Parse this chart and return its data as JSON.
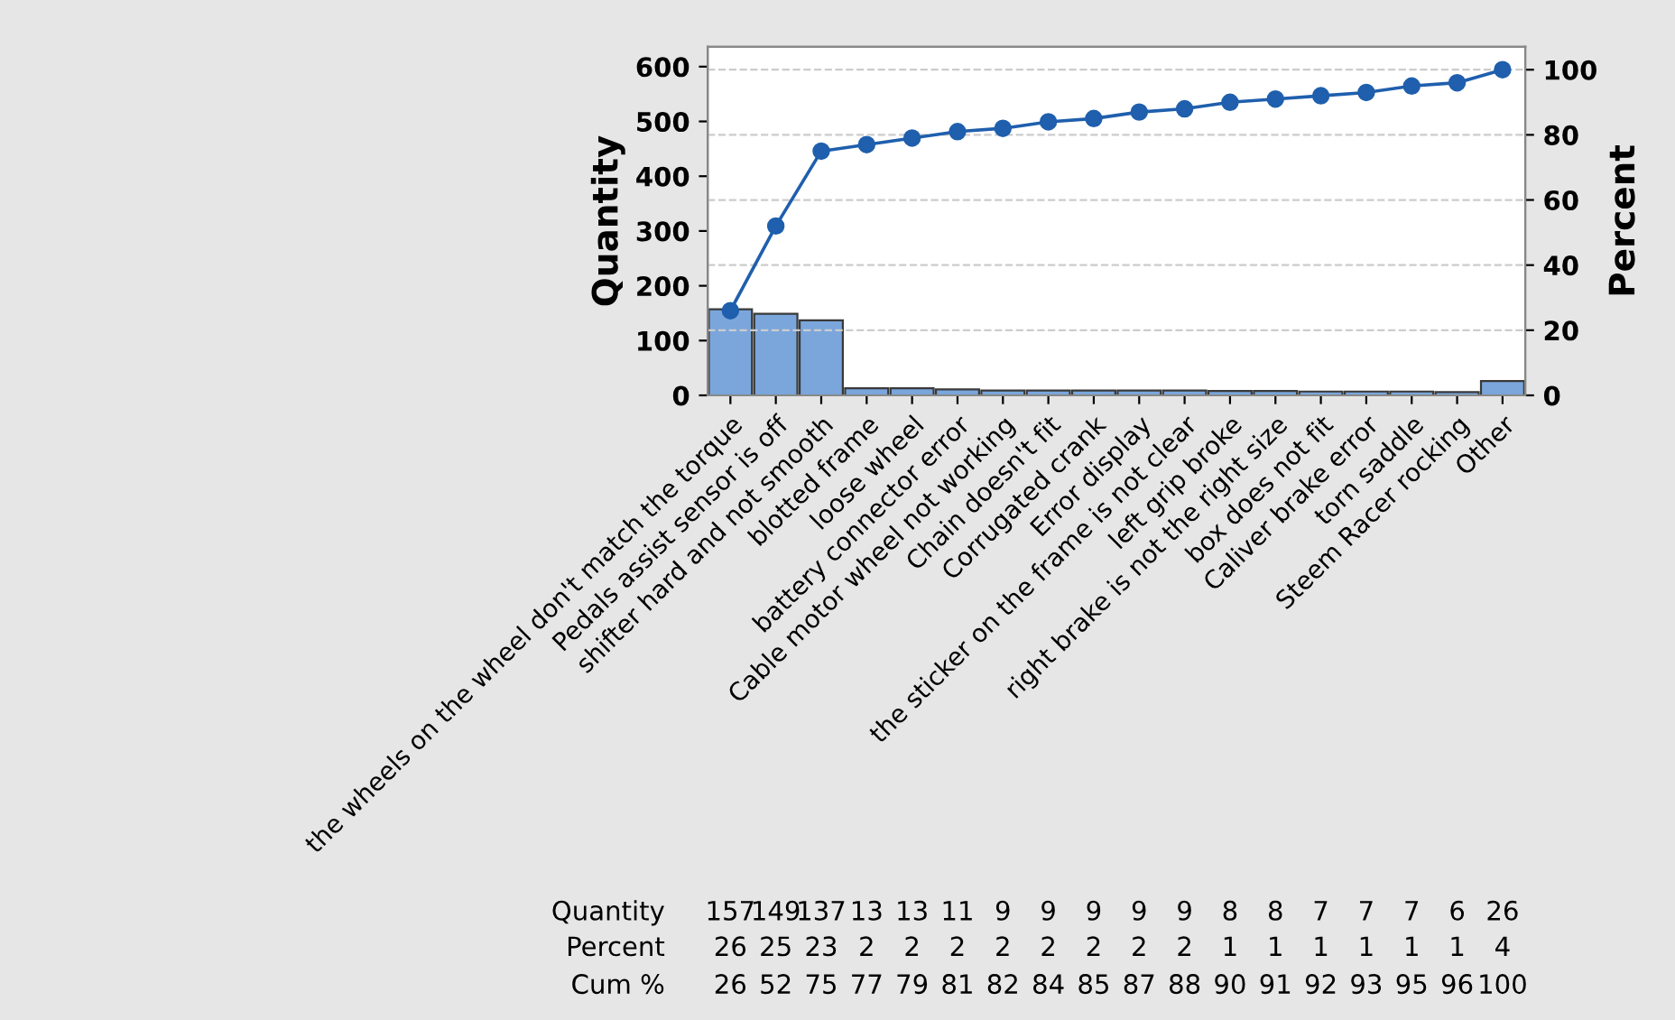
{
  "chart_data": {
    "type": "bar",
    "ylabel": "Quantity",
    "y2label": "Percent",
    "categories": [
      "the wheels on the wheel don't match the torque",
      "Pedals assist sensor is off",
      "shifter hard and not smooth",
      "blotted frame",
      "loose wheel",
      "battery connector error",
      "Cable motor wheel not working",
      "Chain doesn't fit",
      "Corrugated crank",
      "Error display",
      "the sticker on the frame is not clear",
      "left grip broke",
      "right brake is not the right size",
      "box does not fit",
      "Caliver brake error",
      "torn saddle",
      "Steem Racer rocking",
      "Other"
    ],
    "series": [
      {
        "color": "#7aa6dc",
        "values": [
          157,
          149,
          137,
          13,
          13,
          11,
          9,
          9,
          9,
          9,
          9,
          8,
          8,
          7,
          7,
          7,
          6,
          26
        ]
      },
      {
        "type": "line",
        "axis": "y2",
        "color": "#1f5fad",
        "values": [
          26,
          52,
          75,
          77,
          79,
          81,
          82,
          84,
          85,
          87,
          88,
          90,
          91,
          92,
          93,
          95,
          96,
          100
        ]
      }
    ],
    "annotations": [
      "Quantity",
      "Percent",
      "Cum %",
      "26",
      "25",
      "23",
      "2",
      "2",
      "2",
      "2",
      "2",
      "2",
      "2",
      "2",
      "1",
      "1",
      "1",
      "1",
      "1",
      "1",
      "4"
    ],
    "ylim": [
      0,
      636
    ],
    "yticks": [
      0,
      100,
      200,
      300,
      400,
      500,
      600
    ],
    "y2lim": [
      0,
      107
    ],
    "y2ticks": [
      0,
      20,
      40,
      60,
      80,
      100
    ],
    "grid": "y",
    "marker": "circle",
    "data_labels": true
  }
}
